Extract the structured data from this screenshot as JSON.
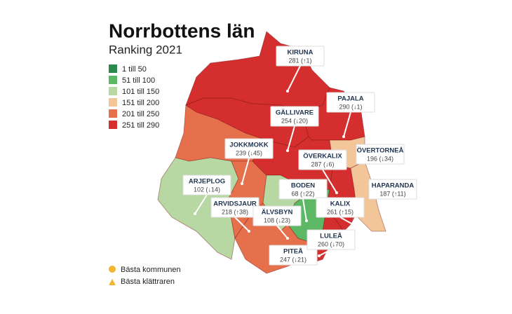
{
  "header": {
    "title": "Norrbottens län",
    "subtitle": "Ranking 2021"
  },
  "legend": [
    {
      "label": "1 till 50",
      "color": "#2a8a4e"
    },
    {
      "label": "51 till 100",
      "color": "#5db866"
    },
    {
      "label": "101 till 150",
      "color": "#b7d8a3"
    },
    {
      "label": "151 till 200",
      "color": "#f3c69a"
    },
    {
      "label": "201 till 250",
      "color": "#e7704c"
    },
    {
      "label": "251 till 290",
      "color": "#d42e2e"
    }
  ],
  "badges": [
    {
      "label": "Bästa kommunen"
    },
    {
      "label": "Bästa klättraren"
    }
  ],
  "municipalities": [
    {
      "name": "KIRUNA",
      "stat": "281 (↑1)",
      "color": "#d42e2e"
    },
    {
      "name": "GÄLLIVARE",
      "stat": "254 (↓20)",
      "color": "#d42e2e"
    },
    {
      "name": "PAJALA",
      "stat": "290 (↓1)",
      "color": "#d42e2e"
    },
    {
      "name": "JOKKMOKK",
      "stat": "239 (↓45)",
      "color": "#e7704c"
    },
    {
      "name": "ARJEPLOG",
      "stat": "102 (↓14)",
      "color": "#b7d8a3"
    },
    {
      "name": "ARVIDSJAUR",
      "stat": "218 (↑38)",
      "color": "#e7704c"
    },
    {
      "name": "ÖVERKALIX",
      "stat": "287 (↓6)",
      "color": "#d42e2e"
    },
    {
      "name": "BODEN",
      "stat": "68 (↑22)",
      "color": "#5db866"
    },
    {
      "name": "ÄLVSBYN",
      "stat": "108 (↓23)",
      "color": "#b7d8a3"
    },
    {
      "name": "PITEÅ",
      "stat": "247 (↓21)",
      "color": "#e7704c"
    },
    {
      "name": "LULEÅ",
      "stat": "260 (↓70)",
      "color": "#d42e2e"
    },
    {
      "name": "KALIX",
      "stat": "261 (↑15)",
      "color": "#d42e2e"
    },
    {
      "name": "ÖVERTORNEÅ",
      "stat": "196 (↓34)",
      "color": "#f3c69a"
    },
    {
      "name": "HAPARANDA",
      "stat": "187 (↑11)",
      "color": "#f3c69a"
    }
  ]
}
